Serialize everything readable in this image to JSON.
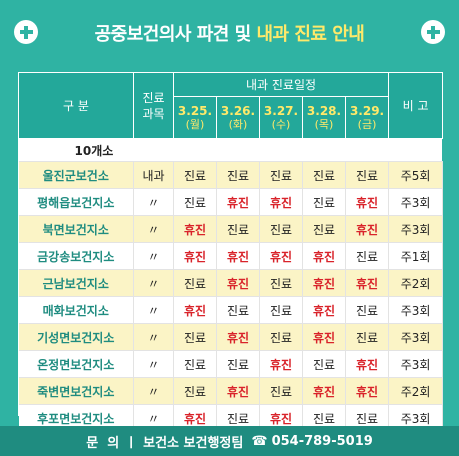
{
  "header": {
    "title_main": "공중보건의사 파견 및 ",
    "title_highlight": "내과 진료 안내"
  },
  "table": {
    "col_category": "구 분",
    "col_subject": "진료\n과목",
    "col_schedule": "내과 진료일정",
    "col_note": "비 고",
    "dates": [
      {
        "date": "3.25.",
        "day": "(월)"
      },
      {
        "date": "3.26.",
        "day": "(화)"
      },
      {
        "date": "3.27.",
        "day": "(수)"
      },
      {
        "date": "3.28.",
        "day": "(목)"
      },
      {
        "date": "3.29.",
        "day": "(금)"
      }
    ],
    "group_label": "10개소",
    "rows": [
      {
        "name": "울진군보건소",
        "subject": "내과",
        "d": [
          "진료",
          "진료",
          "진료",
          "진료",
          "진료"
        ],
        "note": "주5회"
      },
      {
        "name": "평해읍보건지소",
        "subject": "〃",
        "d": [
          "진료",
          "휴진",
          "휴진",
          "진료",
          "휴진"
        ],
        "note": "주3회"
      },
      {
        "name": "북면보건지소",
        "subject": "〃",
        "d": [
          "휴진",
          "진료",
          "진료",
          "진료",
          "휴진"
        ],
        "note": "주3회"
      },
      {
        "name": "금강송보건지소",
        "subject": "〃",
        "d": [
          "휴진",
          "휴진",
          "휴진",
          "휴진",
          "진료"
        ],
        "note": "주1회"
      },
      {
        "name": "근남보건지소",
        "subject": "〃",
        "d": [
          "진료",
          "휴진",
          "진료",
          "휴진",
          "휴진"
        ],
        "note": "주2회"
      },
      {
        "name": "매화보건지소",
        "subject": "〃",
        "d": [
          "휴진",
          "진료",
          "진료",
          "휴진",
          "진료"
        ],
        "note": "주3회"
      },
      {
        "name": "기성면보건지소",
        "subject": "〃",
        "d": [
          "진료",
          "휴진",
          "진료",
          "휴진",
          "진료"
        ],
        "note": "주3회"
      },
      {
        "name": "온정면보건지소",
        "subject": "〃",
        "d": [
          "진료",
          "진료",
          "휴진",
          "진료",
          "휴진"
        ],
        "note": "주3회"
      },
      {
        "name": "죽변면보건지소",
        "subject": "〃",
        "d": [
          "진료",
          "휴진",
          "진료",
          "휴진",
          "휴진"
        ],
        "note": "주2회"
      },
      {
        "name": "후포면보건지소",
        "subject": "〃",
        "d": [
          "휴진",
          "진료",
          "휴진",
          "진료",
          "진료"
        ],
        "note": "주3회"
      }
    ]
  },
  "footer": {
    "label": "문  의",
    "sep": "ㅣ",
    "dept": "보건소 보건행정팀",
    "phone_icon": "☎",
    "phone": "054-789-5019"
  },
  "colors": {
    "rest": "#d9232a",
    "accent": "#ffe96a",
    "brand": "#2fb3a3"
  }
}
